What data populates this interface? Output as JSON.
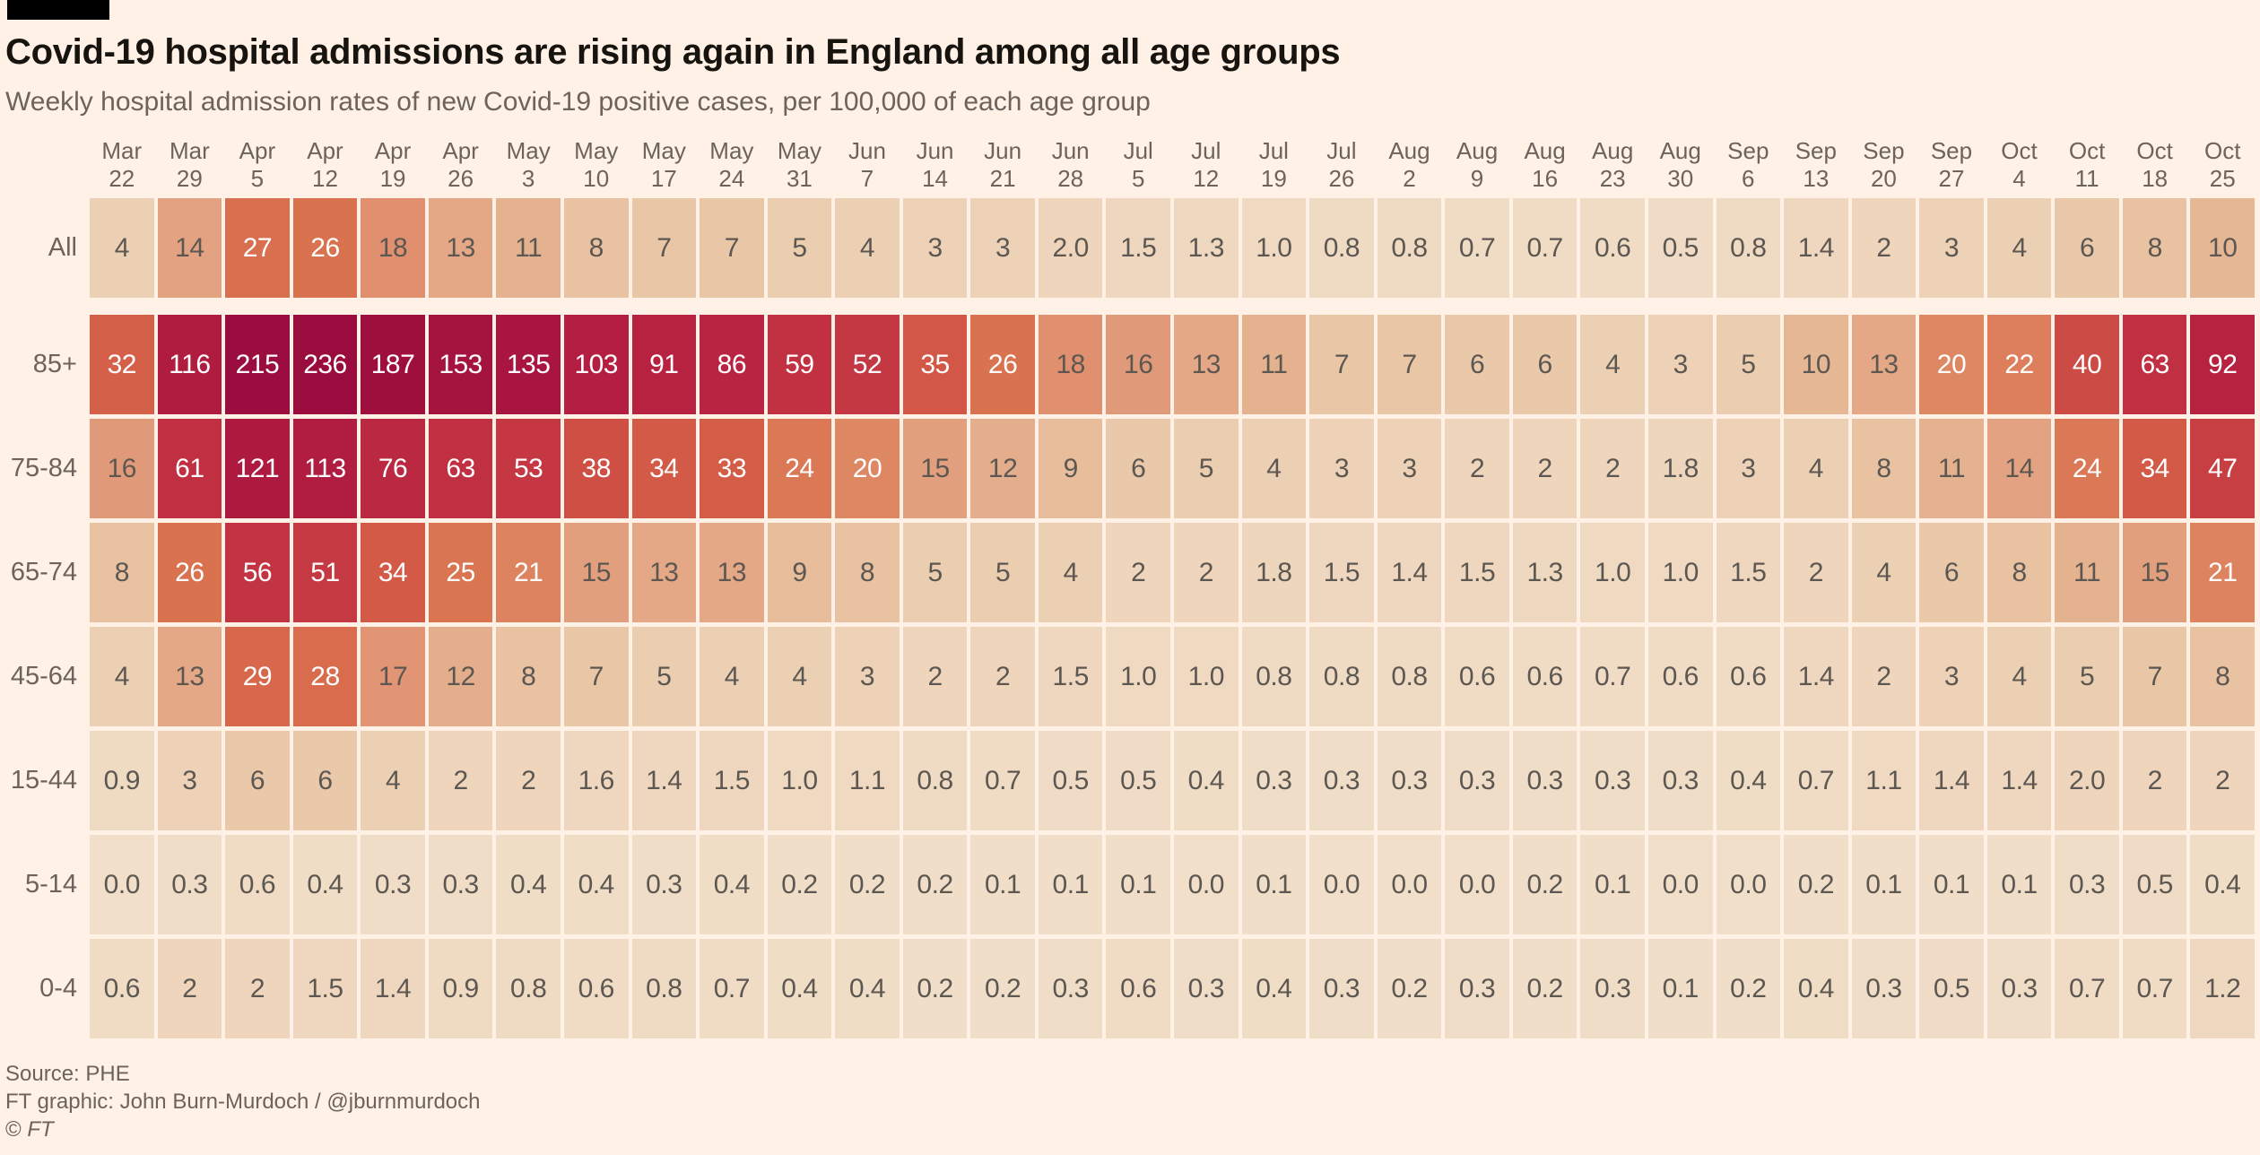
{
  "chart_data": {
    "type": "heatmap",
    "title": "Covid-19 hospital admissions are rising again in England among all age groups",
    "subtitle": "Weekly hospital admission rates of new Covid-19 positive cases, per 100,000 of each age group",
    "legend": "none",
    "columns": [
      [
        "Mar",
        "22"
      ],
      [
        "Mar",
        "29"
      ],
      [
        "Apr",
        "5"
      ],
      [
        "Apr",
        "12"
      ],
      [
        "Apr",
        "19"
      ],
      [
        "Apr",
        "26"
      ],
      [
        "May",
        "3"
      ],
      [
        "May",
        "10"
      ],
      [
        "May",
        "17"
      ],
      [
        "May",
        "24"
      ],
      [
        "May",
        "31"
      ],
      [
        "Jun",
        "7"
      ],
      [
        "Jun",
        "14"
      ],
      [
        "Jun",
        "21"
      ],
      [
        "Jun",
        "28"
      ],
      [
        "Jul",
        "5"
      ],
      [
        "Jul",
        "12"
      ],
      [
        "Jul",
        "19"
      ],
      [
        "Jul",
        "26"
      ],
      [
        "Aug",
        "2"
      ],
      [
        "Aug",
        "9"
      ],
      [
        "Aug",
        "16"
      ],
      [
        "Aug",
        "23"
      ],
      [
        "Aug",
        "30"
      ],
      [
        "Sep",
        "6"
      ],
      [
        "Sep",
        "13"
      ],
      [
        "Sep",
        "20"
      ],
      [
        "Sep",
        "27"
      ],
      [
        "Oct",
        "4"
      ],
      [
        "Oct",
        "11"
      ],
      [
        "Oct",
        "18"
      ],
      [
        "Oct",
        "25"
      ]
    ],
    "rows": [
      {
        "label": "All",
        "values": [
          "4",
          "14",
          "27",
          "26",
          "18",
          "13",
          "11",
          "8",
          "7",
          "7",
          "5",
          "4",
          "3",
          "3",
          "2.0",
          "1.5",
          "1.3",
          "1.0",
          "0.8",
          "0.8",
          "0.7",
          "0.7",
          "0.6",
          "0.5",
          "0.8",
          "1.4",
          "2",
          "3",
          "4",
          "6",
          "8",
          "10"
        ]
      },
      {
        "label": "85+",
        "values": [
          "32",
          "116",
          "215",
          "236",
          "187",
          "153",
          "135",
          "103",
          "91",
          "86",
          "59",
          "52",
          "35",
          "26",
          "18",
          "16",
          "13",
          "11",
          "7",
          "7",
          "6",
          "6",
          "4",
          "3",
          "5",
          "10",
          "13",
          "20",
          "22",
          "40",
          "63",
          "92"
        ]
      },
      {
        "label": "75-84",
        "values": [
          "16",
          "61",
          "121",
          "113",
          "76",
          "63",
          "53",
          "38",
          "34",
          "33",
          "24",
          "20",
          "15",
          "12",
          "9",
          "6",
          "5",
          "4",
          "3",
          "3",
          "2",
          "2",
          "2",
          "1.8",
          "3",
          "4",
          "8",
          "11",
          "14",
          "24",
          "34",
          "47"
        ]
      },
      {
        "label": "65-74",
        "values": [
          "8",
          "26",
          "56",
          "51",
          "34",
          "25",
          "21",
          "15",
          "13",
          "13",
          "9",
          "8",
          "5",
          "5",
          "4",
          "2",
          "2",
          "1.8",
          "1.5",
          "1.4",
          "1.5",
          "1.3",
          "1.0",
          "1.0",
          "1.5",
          "2",
          "4",
          "6",
          "8",
          "11",
          "15",
          "21"
        ]
      },
      {
        "label": "45-64",
        "values": [
          "4",
          "13",
          "29",
          "28",
          "17",
          "12",
          "8",
          "7",
          "5",
          "4",
          "4",
          "3",
          "2",
          "2",
          "1.5",
          "1.0",
          "1.0",
          "0.8",
          "0.8",
          "0.8",
          "0.6",
          "0.6",
          "0.7",
          "0.6",
          "0.6",
          "1.4",
          "2",
          "3",
          "4",
          "5",
          "7",
          "8"
        ]
      },
      {
        "label": "15-44",
        "values": [
          "0.9",
          "3",
          "6",
          "6",
          "4",
          "2",
          "2",
          "1.6",
          "1.4",
          "1.5",
          "1.0",
          "1.1",
          "0.8",
          "0.7",
          "0.5",
          "0.5",
          "0.4",
          "0.3",
          "0.3",
          "0.3",
          "0.3",
          "0.3",
          "0.3",
          "0.3",
          "0.4",
          "0.7",
          "1.1",
          "1.4",
          "1.4",
          "2.0",
          "2",
          "2"
        ]
      },
      {
        "label": "5-14",
        "values": [
          "0.0",
          "0.3",
          "0.6",
          "0.4",
          "0.3",
          "0.3",
          "0.4",
          "0.4",
          "0.3",
          "0.4",
          "0.2",
          "0.2",
          "0.2",
          "0.1",
          "0.1",
          "0.1",
          "0.0",
          "0.1",
          "0.0",
          "0.0",
          "0.0",
          "0.2",
          "0.1",
          "0.0",
          "0.0",
          "0.2",
          "0.1",
          "0.1",
          "0.1",
          "0.3",
          "0.5",
          "0.4"
        ]
      },
      {
        "label": "0-4",
        "values": [
          "0.6",
          "2",
          "2",
          "1.5",
          "1.4",
          "0.9",
          "0.8",
          "0.6",
          "0.8",
          "0.7",
          "0.4",
          "0.4",
          "0.2",
          "0.2",
          "0.3",
          "0.6",
          "0.3",
          "0.4",
          "0.3",
          "0.2",
          "0.3",
          "0.2",
          "0.3",
          "0.1",
          "0.2",
          "0.4",
          "0.3",
          "0.5",
          "0.3",
          "0.7",
          "0.7",
          "1.2"
        ]
      }
    ],
    "color_scale": {
      "background": "#fff1e5",
      "dark_text": "#5d5752",
      "white_text": "#ffffff",
      "white_text_min": 19,
      "stops": [
        [
          0,
          "#f1dfca"
        ],
        [
          1,
          "#efd9c1"
        ],
        [
          2,
          "#eed5bc"
        ],
        [
          3,
          "#edd2b7"
        ],
        [
          4,
          "#ecd0b4"
        ],
        [
          5,
          "#ebcdb0"
        ],
        [
          6,
          "#eac9ab"
        ],
        [
          7,
          "#e9c6a6"
        ],
        [
          8,
          "#e8c2a1"
        ],
        [
          10,
          "#e6b795"
        ],
        [
          12,
          "#e4ad8b"
        ],
        [
          14,
          "#e3a383"
        ],
        [
          16,
          "#e19a79"
        ],
        [
          18,
          "#e0906e"
        ],
        [
          20,
          "#de8763"
        ],
        [
          23,
          "#dc7b58"
        ],
        [
          26,
          "#d9724f"
        ],
        [
          30,
          "#d6654a"
        ],
        [
          34,
          "#d35a47"
        ],
        [
          38,
          "#cf4f45"
        ],
        [
          43,
          "#ca4544"
        ],
        [
          50,
          "#c53a43"
        ],
        [
          58,
          "#c23242"
        ],
        [
          68,
          "#be2c42"
        ],
        [
          80,
          "#ba2641"
        ],
        [
          95,
          "#b62141"
        ],
        [
          110,
          "#b21d41"
        ],
        [
          120,
          "#ae1940"
        ],
        [
          130,
          "#a91540"
        ],
        [
          145,
          "#a7143f"
        ],
        [
          165,
          "#a3123f"
        ],
        [
          190,
          "#9f0f3e"
        ],
        [
          215,
          "#9b0d3e"
        ],
        [
          236,
          "#990c3d"
        ]
      ]
    }
  },
  "footer": {
    "source": "Source: PHE",
    "credit": "FT graphic: John Burn-Murdoch / @jburnmurdoch",
    "copyright_prefix": "©",
    "copyright_brand": "FT"
  }
}
